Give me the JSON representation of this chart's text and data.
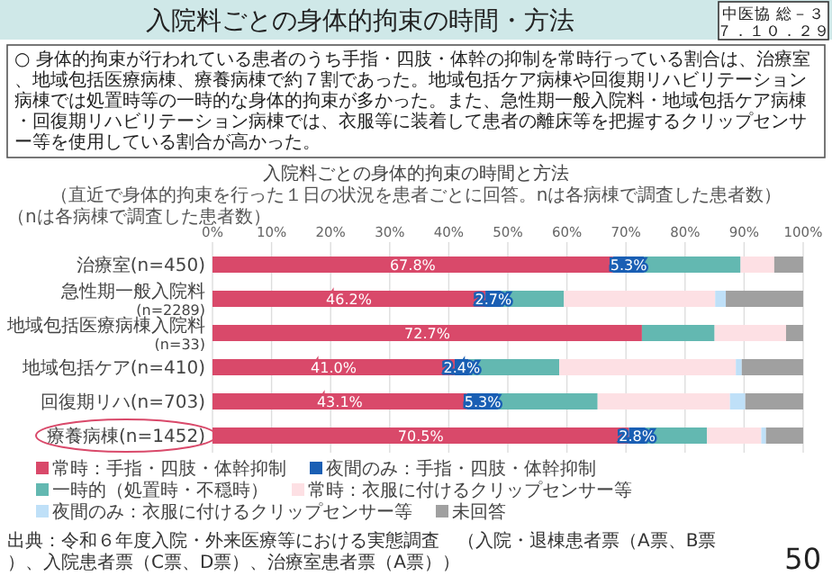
{
  "chart_data": {
    "type": "bar",
    "orientation": "horizontal",
    "stacked": true,
    "title": "入院料ごとの身体的拘束の時間・方法",
    "subtitle": "入院料ごとの身体的拘束の時間と方法",
    "annotations": [
      "中医協 総－３",
      "７．１０．２９",
      "○ 身体的拘束が行われている患者のうち手指・四肢・体幹の抑制を常時行っている割合は、治療室、地域包括医療病棟、療養病棟で約７割であった。地域包括ケア病棟や回復期リハビリテーション病棟では処置時等の一時的な身体的拘束が多かった。また、急性期一般入院料・地域包括ケア病棟・回復期リハビリテーション病棟では、衣服等に装着して患者の離床等を把握するクリップセンサー等を使用している割合が高かった。",
      "（直近で身体的拘束を行った１日の状況を患者ごとに回答。nは各病棟で調査した患者数）",
      "（nは各病棟で調査した患者数）",
      "出典：令和６年度入院・外来医療等における実態調査　（入院・退棟患者票（A票、B票）、入院患者票（C票、D票）、治療室患者票（A票））",
      "50"
    ],
    "categories": [
      "治療室(n=450)",
      "急性期一般入院料(n=2289)",
      "地域包括医療病棟入院料(n=33)",
      "地域包括ケア(n=410)",
      "回復期リハ(n=703)",
      "療養病棟(n=1452)"
    ],
    "series": [
      {
        "name": "常時：手指・四肢・体幹抑制",
        "color": "#d9496a",
        "values": [
          67.8,
          46.2,
          72.7,
          41.0,
          43.1,
          70.5
        ],
        "value_labels": [
          "67.8%",
          "46.2%",
          "72.7%",
          "41.0%",
          "43.1%",
          "70.5%"
        ]
      },
      {
        "name": "夜間のみ：手指・四肢・体幹抑制",
        "color": "#1a5fb4",
        "values": [
          5.3,
          2.7,
          0,
          2.4,
          5.3,
          2.8
        ],
        "value_labels": [
          "5.3%",
          "2.7%",
          null,
          "2.4%",
          "5.3%",
          "2.8%"
        ]
      },
      {
        "name": "一時的（処置時・不穏時）",
        "color": "#63b8b1",
        "values": [
          16.3,
          10.6,
          12.3,
          15.3,
          16.8,
          10.4
        ]
      },
      {
        "name": "常時：衣服に付けるクリップセンサー等",
        "color": "#fde0e4",
        "values": [
          5.7,
          25.6,
          12.1,
          29.9,
          22.4,
          9.2
        ]
      },
      {
        "name": "夜間のみ：衣服に付けるクリップセンサー等",
        "color": "#bfe0f8",
        "values": [
          0,
          1.8,
          0,
          1.0,
          2.6,
          0.8
        ]
      },
      {
        "name": "未回答",
        "color": "#a0a0a0",
        "values": [
          4.9,
          13.1,
          2.9,
          10.4,
          9.8,
          6.3
        ]
      }
    ],
    "xlim": [
      0,
      100
    ],
    "xticks": [
      {
        "value": 0,
        "label": "0%"
      },
      {
        "value": 10,
        "label": "10%"
      },
      {
        "value": 20,
        "label": "20%"
      },
      {
        "value": 30,
        "label": "30%"
      },
      {
        "value": 40,
        "label": "40%"
      },
      {
        "value": 50,
        "label": "50%"
      },
      {
        "value": 60,
        "label": "60%"
      },
      {
        "value": 70,
        "label": "70%"
      },
      {
        "value": 80,
        "label": "80%"
      },
      {
        "value": 90,
        "label": "90%"
      },
      {
        "value": 100,
        "label": "100%"
      }
    ],
    "grid": "x",
    "legend": "bottom"
  }
}
